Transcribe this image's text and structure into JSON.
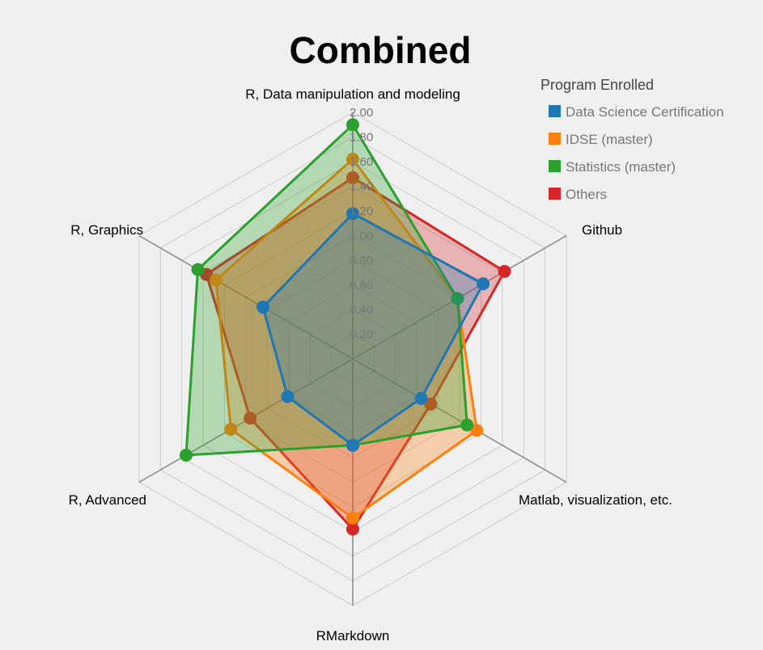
{
  "chart_data": {
    "type": "radar",
    "title": "Combined",
    "axes": [
      "R, Data manipulation and modeling",
      "Github",
      "Matlab, visualization, etc.",
      "RMarkdown",
      "R, Advanced",
      "R, Graphics"
    ],
    "range": [
      0,
      2.0
    ],
    "ticks": [
      "0.20",
      "0.40",
      "0.60",
      "0.80",
      "1.00",
      "1.20",
      "1.40",
      "1.60",
      "1.80",
      "2.00"
    ],
    "grid": true,
    "legend": {
      "title": "Program Enrolled",
      "placement": "top-right"
    },
    "series": [
      {
        "name": "Others",
        "color": "#d62728",
        "values": [
          1.47,
          1.42,
          0.73,
          1.38,
          0.96,
          1.37
        ]
      },
      {
        "name": "IDSE (master)",
        "color": "#ff7f0e",
        "values": [
          1.62,
          0.98,
          1.16,
          1.29,
          1.14,
          1.28
        ]
      },
      {
        "name": "Statistics (master)",
        "color": "#2ca02c",
        "values": [
          1.9,
          0.98,
          1.07,
          0.7,
          1.56,
          1.45
        ]
      },
      {
        "name": "Data Science Certification",
        "color": "#1f77b4",
        "values": [
          1.18,
          1.22,
          0.64,
          0.7,
          0.61,
          0.84
        ]
      }
    ],
    "legend_order": [
      "Data Science Certification",
      "IDSE (master)",
      "Statistics (master)",
      "Others"
    ]
  }
}
